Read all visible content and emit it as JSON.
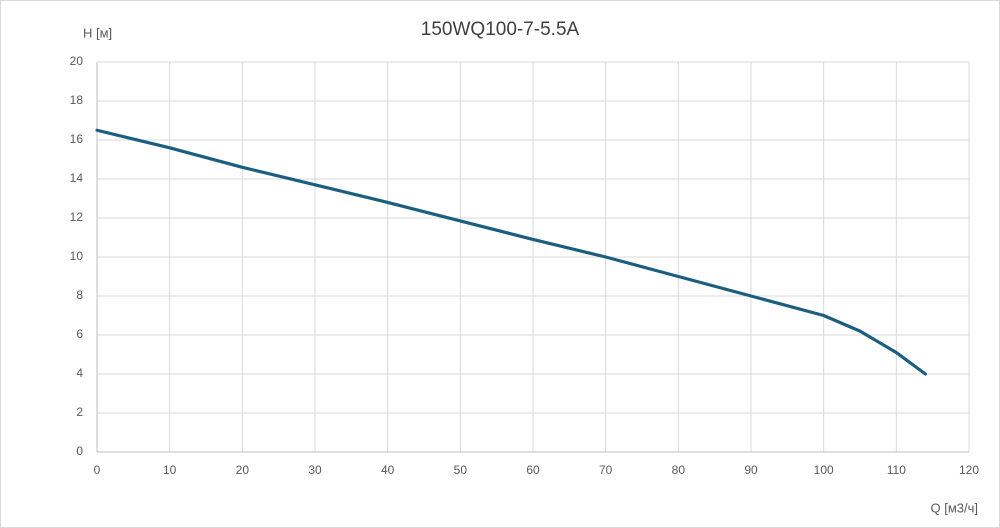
{
  "chart_data": {
    "type": "line",
    "title": "150WQ100-7-5.5A",
    "y_label": "H [м]",
    "x_label": "Q [м3/ч]",
    "x": [
      0,
      10,
      20,
      30,
      40,
      50,
      60,
      70,
      80,
      90,
      100,
      105,
      110,
      114
    ],
    "series": [
      {
        "name": "H",
        "color": "#1b5e80",
        "values": [
          16.5,
          15.6,
          14.6,
          13.7,
          12.8,
          11.85,
          10.9,
          10.0,
          9.0,
          8.0,
          7.0,
          6.2,
          5.1,
          4.0
        ]
      }
    ],
    "xlim": [
      0,
      120
    ],
    "xticks": [
      0,
      10,
      20,
      30,
      40,
      50,
      60,
      70,
      80,
      90,
      100,
      110,
      120
    ],
    "ylim": [
      0,
      20
    ],
    "yticks": [
      0,
      2,
      4,
      6,
      8,
      10,
      12,
      14,
      16,
      18,
      20
    ],
    "grid": true
  }
}
